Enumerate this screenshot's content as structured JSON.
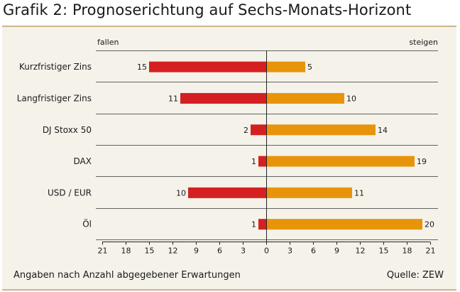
{
  "title": "Grafik 2: Prognoserichtung auf Sechs-Monats-Horizont",
  "footer": {
    "note": "Angaben nach Anzahl abgegebener Erwartungen",
    "source": "Quelle: ZEW"
  },
  "colors": {
    "fall": "#d42021",
    "rise": "#e8940b",
    "panel": "#f5f2ea",
    "rule": "#c9b68a"
  },
  "chart_data": {
    "type": "bar",
    "orientation": "horizontal-diverging",
    "left_label": "fallen",
    "right_label": "steigen",
    "categories": [
      "Kurzfristiger Zins",
      "Langfristiger Zins",
      "DJ Stoxx 50",
      "DAX",
      "USD / EUR",
      "Öl"
    ],
    "series": [
      {
        "name": "fallen",
        "values": [
          15,
          11,
          2,
          1,
          10,
          1
        ]
      },
      {
        "name": "steigen",
        "values": [
          5,
          10,
          14,
          19,
          11,
          20
        ]
      }
    ],
    "xlim": [
      -21,
      21
    ],
    "xticks": [
      "21",
      "18",
      "15",
      "12",
      "9",
      "6",
      "3",
      "0",
      "3",
      "6",
      "9",
      "12",
      "15",
      "18",
      "21"
    ],
    "grid": "horizontal separators between categories"
  }
}
